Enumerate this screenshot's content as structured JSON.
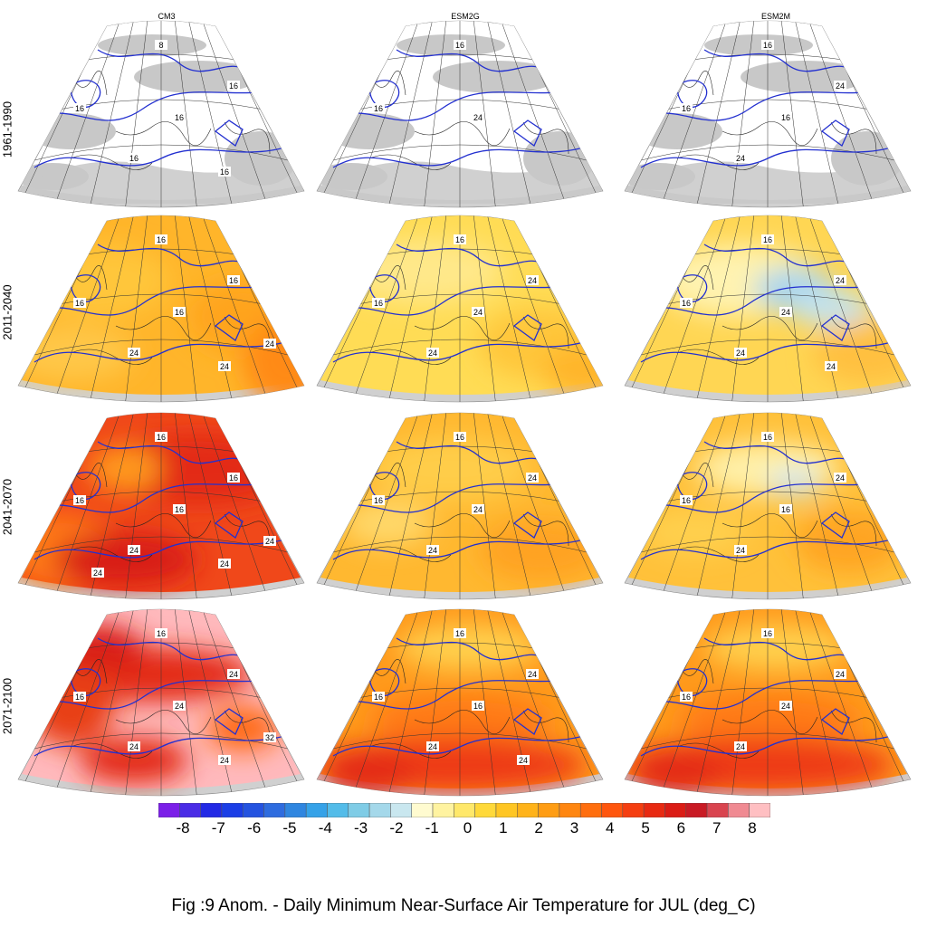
{
  "columns": [
    {
      "title": "CM3"
    },
    {
      "title": "ESM2G"
    },
    {
      "title": "ESM2M"
    }
  ],
  "rows": [
    {
      "label": "1961-1990"
    },
    {
      "label": "2011-2040"
    },
    {
      "label": "2041-2070"
    },
    {
      "label": "2071-2100"
    }
  ],
  "panels": [
    [
      {
        "fill": "none",
        "contour_labels": [
          "8",
          "16",
          "16",
          "16",
          "16",
          "16"
        ]
      },
      {
        "fill": "none",
        "contour_labels": [
          "16",
          "16",
          "24"
        ]
      },
      {
        "fill": "none",
        "contour_labels": [
          "16",
          "16",
          "16",
          "24",
          "24"
        ]
      }
    ],
    [
      {
        "fill": "orange",
        "contour_labels": [
          "16",
          "16",
          "16",
          "16",
          "24",
          "24",
          "24"
        ]
      },
      {
        "fill": "yellow",
        "contour_labels": [
          "16",
          "16",
          "24",
          "24",
          "24"
        ]
      },
      {
        "fill": "yellow-blue",
        "contour_labels": [
          "16",
          "16",
          "24",
          "24",
          "24",
          "24"
        ]
      }
    ],
    [
      {
        "fill": "red",
        "contour_labels": [
          "16",
          "16",
          "16",
          "16",
          "24",
          "24",
          "24",
          "24"
        ]
      },
      {
        "fill": "light-orange",
        "contour_labels": [
          "16",
          "16",
          "24",
          "24",
          "24"
        ]
      },
      {
        "fill": "yellow-orange",
        "contour_labels": [
          "16",
          "16",
          "16",
          "24",
          "24"
        ]
      }
    ],
    [
      {
        "fill": "red-pink",
        "contour_labels": [
          "16",
          "16",
          "24",
          "24",
          "24",
          "24",
          "32"
        ]
      },
      {
        "fill": "orange-red",
        "contour_labels": [
          "16",
          "16",
          "16",
          "24",
          "24",
          "24"
        ]
      },
      {
        "fill": "orange-red",
        "contour_labels": [
          "16",
          "16",
          "24",
          "24",
          "24"
        ]
      }
    ]
  ],
  "colorbar": {
    "colors": [
      "#7b1fe8",
      "#4a2ce6",
      "#2229e5",
      "#1b3ee6",
      "#2453e0",
      "#2e6cdf",
      "#2f86e0",
      "#35a2e8",
      "#53bce9",
      "#7fcce6",
      "#a4d8ea",
      "#c9e7ef",
      "#fffbd0",
      "#fff3a0",
      "#ffe86a",
      "#ffd93a",
      "#ffc623",
      "#ffb31a",
      "#ff9d14",
      "#ff8610",
      "#ff6e0e",
      "#ff560e",
      "#f53e10",
      "#e82a12",
      "#db1c15",
      "#c91a24",
      "#d9444f",
      "#f08a92",
      "#ffbfc2"
    ],
    "tick_labels": [
      "-8",
      "-7",
      "-6",
      "-5",
      "-4",
      "-3",
      "-2",
      "-1",
      "0",
      "1",
      "2",
      "3",
      "4",
      "5",
      "6",
      "7",
      "8"
    ]
  },
  "caption": "Fig :9  Anom.  - Daily Minimum Near-Surface Air Temperature for JUL (deg_C)"
}
